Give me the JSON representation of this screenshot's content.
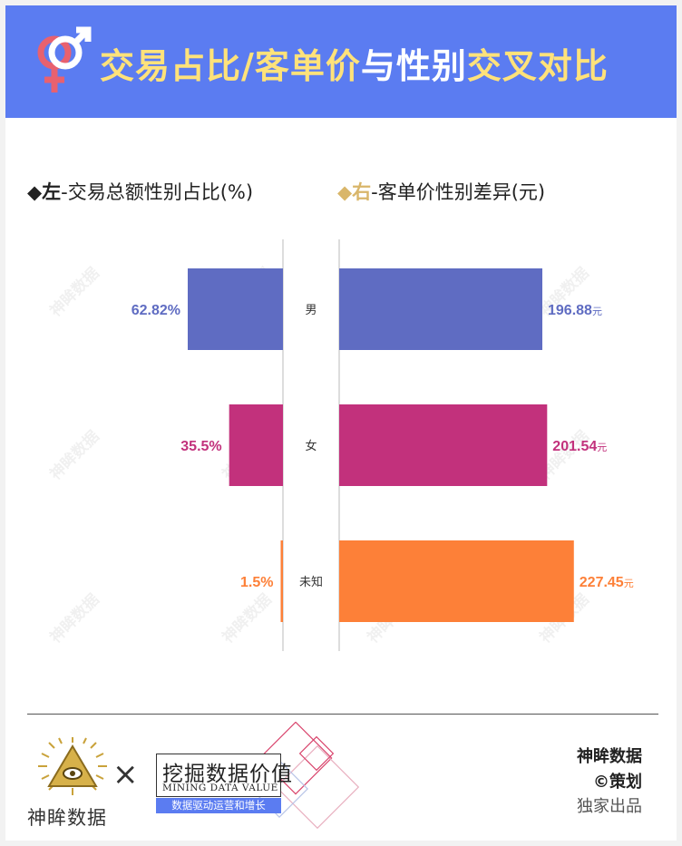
{
  "header": {
    "title_part1": "交易占比/客单价",
    "title_part2": "与性别",
    "title_part3": "交叉对比",
    "accent_color": "#5b7cf1",
    "highlight_color": "#ffe27a"
  },
  "left_panel": {
    "bullet": "◆",
    "lead": "左",
    "label": "-交易总额性别占比(%)",
    "bullet_color": "#222222"
  },
  "right_panel": {
    "bullet": "◆",
    "lead": "右",
    "label": "-客单价性别差异(元)",
    "bullet_color": "#d9b66a"
  },
  "chart_data": {
    "type": "bar",
    "categories": [
      "男",
      "女",
      "未知"
    ],
    "colors": [
      "#5f6cc2",
      "#c2317c",
      "#fd8038"
    ],
    "series": [
      {
        "values": [
          62.82,
          35.5,
          1.5
        ],
        "labels": [
          "62.82%",
          "35.5%",
          "1.5%"
        ]
      },
      {
        "values": [
          196.88,
          201.54,
          227.45
        ],
        "labels": [
          "196.88",
          "201.54",
          "227.45"
        ],
        "unit": "元"
      }
    ],
    "title": "",
    "xlabel": "",
    "ylabel": "",
    "grid": false
  },
  "watermark": "神眸数据",
  "footer": {
    "brand_left": "神眸数据",
    "times": "×",
    "brand_mid": "挖掘数据价值",
    "brand_mid_en": "MINING DATA VALUE",
    "brand_mid_sub": "数据驱动运营和增长",
    "credit_line1": "神眸数据",
    "credit_line2": "©策划",
    "credit_line3": "独家出品"
  }
}
